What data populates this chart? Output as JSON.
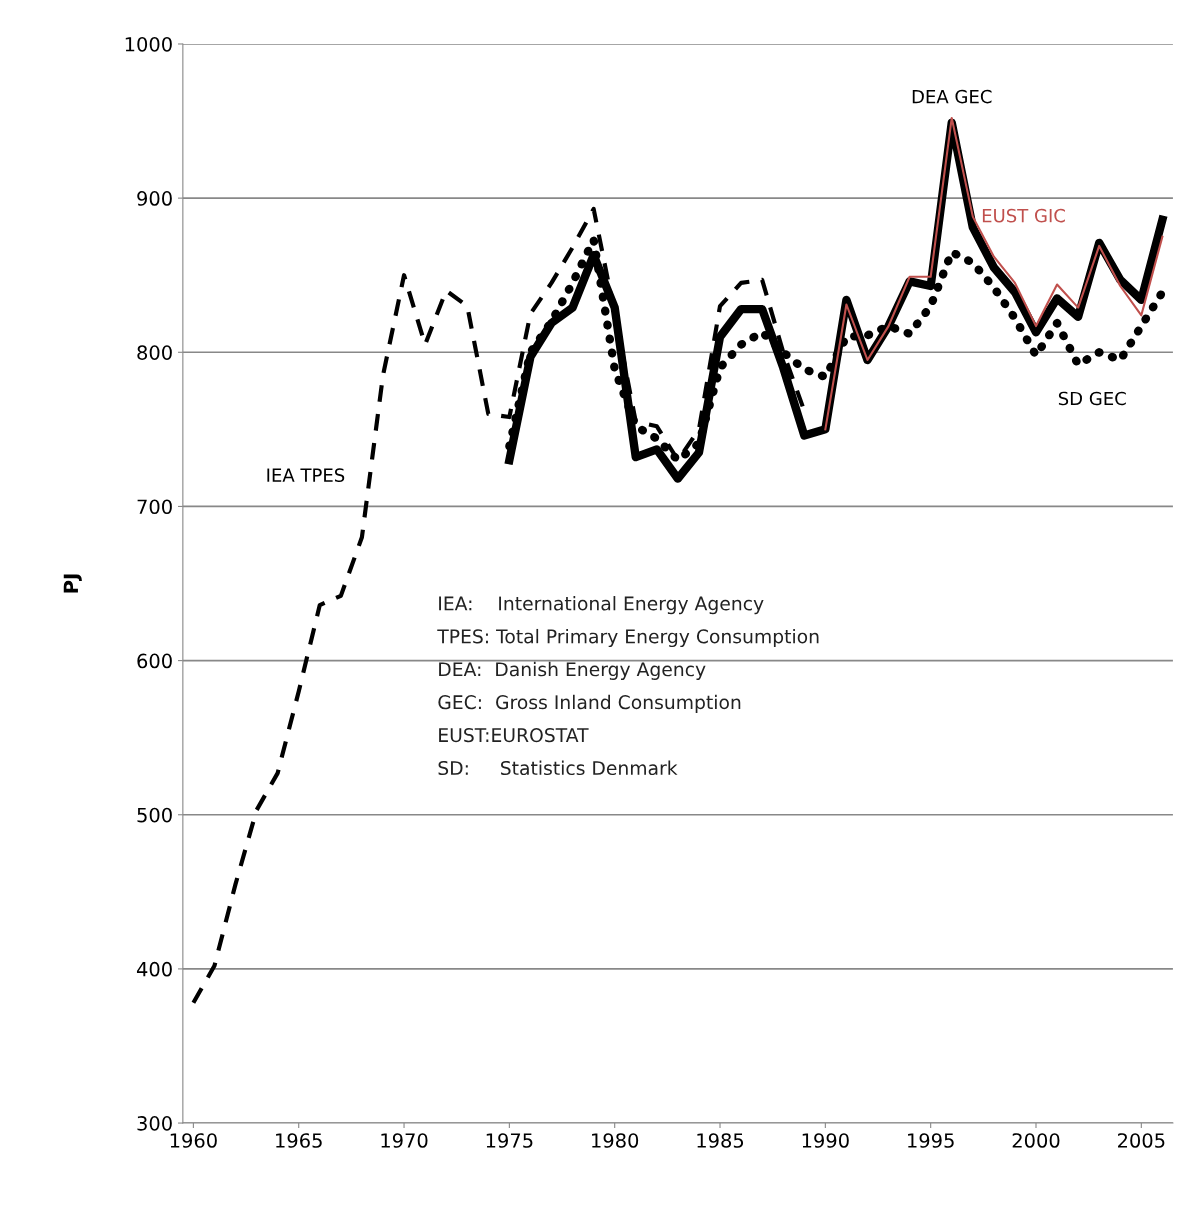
{
  "chart_data": {
    "type": "line",
    "ylabel": "PJ",
    "xlim": [
      1959.5,
      2006.5
    ],
    "xticks": [
      1960,
      1965,
      1970,
      1975,
      1980,
      1985,
      1990,
      1995,
      2000,
      2005
    ],
    "ylim": [
      300,
      1000
    ],
    "yticks": [
      300,
      400,
      500,
      600,
      700,
      800,
      900,
      1000
    ],
    "grid": "y",
    "legend": false,
    "marker": "none",
    "series": [
      {
        "name": "IEA TPES",
        "color": "#000000",
        "line_style": "dashed",
        "x": [
          1960,
          1961,
          1962,
          1963,
          1964,
          1965,
          1966,
          1967,
          1968,
          1969,
          1970,
          1971,
          1972,
          1973,
          1974,
          1975,
          1976,
          1977,
          1978,
          1979,
          1980,
          1981,
          1982,
          1983,
          1984,
          1985,
          1986,
          1987,
          1988,
          1989
        ],
        "values": [
          378,
          402,
          455,
          503,
          527,
          580,
          636,
          642,
          680,
          785,
          850,
          805,
          840,
          830,
          760,
          758,
          825,
          845,
          868,
          893,
          825,
          755,
          752,
          730,
          750,
          830,
          845,
          847,
          800,
          762
        ]
      },
      {
        "name": "DEA GEC",
        "color": "#000000",
        "line_style": "solid",
        "x": [
          1975,
          1976,
          1977,
          1978,
          1979,
          1980,
          1981,
          1982,
          1983,
          1984,
          1985,
          1986,
          1987,
          1988,
          1989,
          1990,
          1991,
          1992,
          1993,
          1994,
          1995,
          1996,
          1997,
          1998,
          1999,
          2000,
          2001,
          2002,
          2003,
          2004,
          2005,
          2006
        ],
        "values": [
          730,
          797,
          819,
          829,
          863,
          829,
          732,
          737,
          718,
          735,
          810,
          828,
          828,
          790,
          746,
          750,
          834,
          795,
          817,
          846,
          843,
          949,
          881,
          855,
          839,
          813,
          835,
          823,
          871,
          847,
          834,
          886
        ]
      },
      {
        "name": "EUST GIC",
        "color": "#c0504d",
        "line_style": "solid",
        "x": [
          1990,
          1991,
          1992,
          1993,
          1994,
          1995,
          1996,
          1997,
          1998,
          1999,
          2000,
          2001,
          2002,
          2003,
          2004,
          2005,
          2006
        ],
        "values": [
          750,
          831,
          795,
          817,
          849,
          849,
          952,
          888,
          862,
          845,
          817,
          844,
          829,
          869,
          843,
          824,
          875
        ]
      },
      {
        "name": "SD GEC",
        "color": "#000000",
        "line_style": "dotted",
        "x": [
          1975,
          1976,
          1977,
          1978,
          1979,
          1980,
          1981,
          1982,
          1983,
          1984,
          1985,
          1986,
          1987,
          1988,
          1989,
          1990,
          1991,
          1992,
          1993,
          1994,
          1995,
          1996,
          1997,
          1998,
          1999,
          2000,
          2001,
          2002,
          2003,
          2004,
          2005,
          2006
        ],
        "values": [
          739,
          800,
          820,
          845,
          873,
          789,
          752,
          744,
          730,
          741,
          790,
          805,
          813,
          800,
          789,
          784,
          810,
          811,
          817,
          812,
          830,
          865,
          858,
          842,
          822,
          798,
          819,
          792,
          800,
          795,
          817,
          839
        ]
      }
    ],
    "annotations": [
      "IEA:    International Energy Agency",
      "TPES: Total Primary Energy Consumption",
      "DEA:  Danish Energy Agency",
      "GEC:  Gross Inland Consumption",
      "EUST:EUROSTAT",
      "SD:     Statistics Denmark"
    ]
  }
}
